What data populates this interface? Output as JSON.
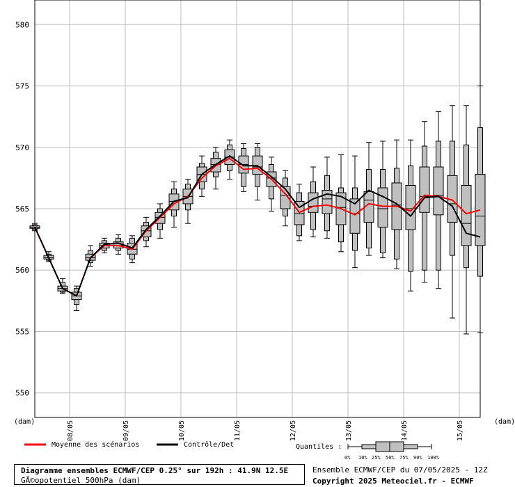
{
  "chart_data": {
    "type": "box",
    "y_unit_left": "(dam)",
    "x_unit_right": "(dam)",
    "ylim": [
      548,
      582
    ],
    "y_ticks": [
      550,
      555,
      560,
      565,
      570,
      575,
      580
    ],
    "grid": true,
    "x_tick_labels": [
      "08/05",
      "09/05",
      "10/05",
      "11/05",
      "12/05",
      "13/05",
      "14/05",
      "15/05"
    ],
    "x_tick_steps": [
      5,
      13,
      21,
      29,
      37,
      45,
      53,
      61
    ],
    "steps": [
      0,
      1,
      2,
      3,
      4,
      5,
      6,
      7,
      8,
      9,
      10,
      11,
      12,
      13,
      14,
      15,
      16,
      17,
      18,
      19,
      20,
      21,
      22,
      23,
      24,
      25,
      26,
      27,
      28,
      29,
      30,
      31,
      32,
      33,
      34,
      35,
      36,
      37,
      38,
      39,
      40,
      41,
      42,
      43,
      44,
      45,
      46,
      47,
      48,
      49,
      50,
      51,
      52,
      53,
      54,
      55,
      56,
      57,
      58,
      59,
      60,
      61,
      62,
      63,
      64
    ],
    "boxes": [
      {
        "step": 0,
        "p0": 563.2,
        "p10": 563.3,
        "p25": 563.4,
        "p50": 563.5,
        "p75": 563.6,
        "p90": 563.7,
        "p100": 563.8
      },
      {
        "step": 2,
        "p0": 560.7,
        "p10": 560.8,
        "p25": 560.9,
        "p50": 561.0,
        "p75": 561.2,
        "p90": 561.3,
        "p100": 561.5
      },
      {
        "step": 4,
        "p0": 558.1,
        "p10": 558.2,
        "p25": 558.3,
        "p50": 558.5,
        "p75": 558.7,
        "p90": 559.0,
        "p100": 559.3
      },
      {
        "step": 6,
        "p0": 556.7,
        "p10": 557.2,
        "p25": 557.6,
        "p50": 557.9,
        "p75": 558.2,
        "p90": 558.5,
        "p100": 558.7
      },
      {
        "step": 8,
        "p0": 560.3,
        "p10": 560.6,
        "p25": 560.8,
        "p50": 561.0,
        "p75": 561.3,
        "p90": 561.6,
        "p100": 562.0
      },
      {
        "step": 10,
        "p0": 561.4,
        "p10": 561.6,
        "p25": 561.8,
        "p50": 562.0,
        "p75": 562.2,
        "p90": 562.4,
        "p100": 562.6
      },
      {
        "step": 12,
        "p0": 561.3,
        "p10": 561.6,
        "p25": 561.8,
        "p50": 562.0,
        "p75": 562.3,
        "p90": 562.6,
        "p100": 562.9
      },
      {
        "step": 14,
        "p0": 560.6,
        "p10": 560.9,
        "p25": 561.3,
        "p50": 561.7,
        "p75": 562.2,
        "p90": 562.6,
        "p100": 562.8
      },
      {
        "step": 16,
        "p0": 561.9,
        "p10": 562.4,
        "p25": 562.7,
        "p50": 563.2,
        "p75": 563.6,
        "p90": 563.9,
        "p100": 564.3
      },
      {
        "step": 18,
        "p0": 562.6,
        "p10": 563.3,
        "p25": 563.8,
        "p50": 564.3,
        "p75": 564.7,
        "p90": 565.0,
        "p100": 565.4
      },
      {
        "step": 20,
        "p0": 563.5,
        "p10": 564.4,
        "p25": 564.9,
        "p50": 565.6,
        "p75": 566.2,
        "p90": 566.6,
        "p100": 567.2
      },
      {
        "step": 22,
        "p0": 563.8,
        "p10": 564.9,
        "p25": 565.4,
        "p50": 566.0,
        "p75": 566.6,
        "p90": 567.0,
        "p100": 567.4
      },
      {
        "step": 24,
        "p0": 566.0,
        "p10": 566.6,
        "p25": 567.2,
        "p50": 567.8,
        "p75": 568.4,
        "p90": 568.7,
        "p100": 569.3
      },
      {
        "step": 26,
        "p0": 566.6,
        "p10": 567.6,
        "p25": 568.0,
        "p50": 568.6,
        "p75": 569.1,
        "p90": 569.6,
        "p100": 570.0
      },
      {
        "step": 28,
        "p0": 567.4,
        "p10": 568.1,
        "p25": 568.6,
        "p50": 569.2,
        "p75": 569.8,
        "p90": 570.2,
        "p100": 570.6
      },
      {
        "step": 30,
        "p0": 566.4,
        "p10": 566.8,
        "p25": 567.9,
        "p50": 568.6,
        "p75": 569.3,
        "p90": 569.9,
        "p100": 570.3
      },
      {
        "step": 32,
        "p0": 565.7,
        "p10": 566.8,
        "p25": 567.8,
        "p50": 568.4,
        "p75": 569.3,
        "p90": 570.0,
        "p100": 570.3
      },
      {
        "step": 34,
        "p0": 564.8,
        "p10": 565.8,
        "p25": 566.8,
        "p50": 567.5,
        "p75": 568.0,
        "p90": 568.6,
        "p100": 569.2
      },
      {
        "step": 36,
        "p0": 563.6,
        "p10": 564.4,
        "p25": 565.0,
        "p50": 566.1,
        "p75": 566.8,
        "p90": 567.5,
        "p100": 568.1
      },
      {
        "step": 38,
        "p0": 562.4,
        "p10": 562.8,
        "p25": 563.7,
        "p50": 564.6,
        "p75": 565.6,
        "p90": 566.3,
        "p100": 567.0
      },
      {
        "step": 40,
        "p0": 562.7,
        "p10": 563.3,
        "p25": 564.7,
        "p50": 565.2,
        "p75": 566.3,
        "p90": 567.2,
        "p100": 568.4
      },
      {
        "step": 42,
        "p0": 562.6,
        "p10": 563.2,
        "p25": 564.6,
        "p50": 565.8,
        "p75": 566.5,
        "p90": 567.7,
        "p100": 569.2
      },
      {
        "step": 44,
        "p0": 561.5,
        "p10": 562.3,
        "p25": 563.7,
        "p50": 565.1,
        "p75": 566.3,
        "p90": 566.7,
        "p100": 569.4
      },
      {
        "step": 46,
        "p0": 560.2,
        "p10": 561.6,
        "p25": 563.0,
        "p50": 564.6,
        "p75": 565.8,
        "p90": 566.7,
        "p100": 569.3
      },
      {
        "step": 48,
        "p0": 561.2,
        "p10": 561.8,
        "p25": 563.9,
        "p50": 565.7,
        "p75": 566.4,
        "p90": 568.2,
        "p100": 570.4
      },
      {
        "step": 50,
        "p0": 561.0,
        "p10": 561.4,
        "p25": 563.5,
        "p50": 565.0,
        "p75": 566.7,
        "p90": 568.2,
        "p100": 570.5
      },
      {
        "step": 52,
        "p0": 560.1,
        "p10": 560.9,
        "p25": 563.3,
        "p50": 565.3,
        "p75": 567.1,
        "p90": 568.3,
        "p100": 570.6
      },
      {
        "step": 54,
        "p0": 558.3,
        "p10": 559.9,
        "p25": 563.3,
        "p50": 565.0,
        "p75": 566.9,
        "p90": 568.5,
        "p100": 570.6
      },
      {
        "step": 56,
        "p0": 559.0,
        "p10": 560.0,
        "p25": 564.7,
        "p50": 566.0,
        "p75": 568.4,
        "p90": 570.1,
        "p100": 572.1
      },
      {
        "step": 58,
        "p0": 558.5,
        "p10": 560.0,
        "p25": 564.5,
        "p50": 566.1,
        "p75": 568.4,
        "p90": 570.5,
        "p100": 572.9
      },
      {
        "step": 60,
        "p0": 556.1,
        "p10": 561.2,
        "p25": 563.9,
        "p50": 565.4,
        "p75": 567.7,
        "p90": 570.5,
        "p100": 573.4
      },
      {
        "step": 62,
        "p0": 554.8,
        "p10": 560.2,
        "p25": 562.0,
        "p50": 563.8,
        "p75": 566.9,
        "p90": 570.2,
        "p100": 573.4
      },
      {
        "step": 64,
        "p0": 554.9,
        "p10": 559.5,
        "p25": 562.0,
        "p50": 564.4,
        "p75": 567.8,
        "p90": 571.6,
        "p100": 575.0
      }
    ],
    "series": [
      {
        "name": "Moyenne des scénarios",
        "color": "#ff0000",
        "points": [
          [
            0,
            563.5
          ],
          [
            2,
            561.0
          ],
          [
            4,
            558.5
          ],
          [
            6,
            557.9
          ],
          [
            8,
            561.0
          ],
          [
            10,
            562.0
          ],
          [
            12,
            562.0
          ],
          [
            14,
            561.7
          ],
          [
            16,
            563.2
          ],
          [
            18,
            564.3
          ],
          [
            20,
            565.4
          ],
          [
            22,
            566.0
          ],
          [
            24,
            567.5
          ],
          [
            26,
            568.5
          ],
          [
            28,
            569.1
          ],
          [
            30,
            568.2
          ],
          [
            32,
            568.3
          ],
          [
            34,
            567.4
          ],
          [
            36,
            566.2
          ],
          [
            38,
            564.7
          ],
          [
            40,
            565.2
          ],
          [
            42,
            565.3
          ],
          [
            44,
            565.0
          ],
          [
            46,
            564.5
          ],
          [
            48,
            565.4
          ],
          [
            50,
            565.2
          ],
          [
            52,
            565.2
          ],
          [
            54,
            564.8
          ],
          [
            56,
            566.1
          ],
          [
            58,
            566.0
          ],
          [
            60,
            565.7
          ],
          [
            62,
            564.6
          ],
          [
            64,
            564.9
          ]
        ]
      },
      {
        "name": "Contrôle/Det",
        "color": "#000000",
        "points": [
          [
            0,
            563.5
          ],
          [
            2,
            561.0
          ],
          [
            4,
            558.5
          ],
          [
            6,
            557.9
          ],
          [
            8,
            561.0
          ],
          [
            10,
            562.1
          ],
          [
            12,
            562.2
          ],
          [
            14,
            561.8
          ],
          [
            16,
            563.3
          ],
          [
            18,
            564.4
          ],
          [
            20,
            565.6
          ],
          [
            22,
            565.9
          ],
          [
            24,
            567.8
          ],
          [
            26,
            568.6
          ],
          [
            28,
            569.3
          ],
          [
            30,
            568.5
          ],
          [
            32,
            568.5
          ],
          [
            34,
            567.6
          ],
          [
            36,
            566.6
          ],
          [
            38,
            565.1
          ],
          [
            40,
            565.8
          ],
          [
            42,
            566.2
          ],
          [
            44,
            566.0
          ],
          [
            46,
            565.4
          ],
          [
            48,
            566.5
          ],
          [
            50,
            566.0
          ],
          [
            52,
            565.4
          ],
          [
            54,
            564.4
          ],
          [
            56,
            565.9
          ],
          [
            58,
            566.0
          ],
          [
            60,
            565.2
          ],
          [
            62,
            563.0
          ],
          [
            64,
            562.7
          ]
        ]
      }
    ],
    "legend": [
      {
        "label": "Moyenne des scénarios",
        "color": "#ff0000"
      },
      {
        "label": "Contrôle/Det",
        "color": "#000000"
      }
    ],
    "quantiles_label": "Quantiles :",
    "quantile_labels": [
      "0%",
      "10%",
      "25%",
      "50%",
      "75%",
      "90%",
      "100%"
    ]
  },
  "footer": {
    "title": "Diagramme ensembles ECMWF/CEP 0.25° sur 192h : 41.9N 12.5E",
    "subtitle": "GÃ©opotentiel 500hPa (dam)",
    "run_info": "Ensemble ECMWF/CEP du 07/05/2025 - 12Z",
    "copyright": "Copyright 2025 Meteociel.fr - ECMWF"
  }
}
